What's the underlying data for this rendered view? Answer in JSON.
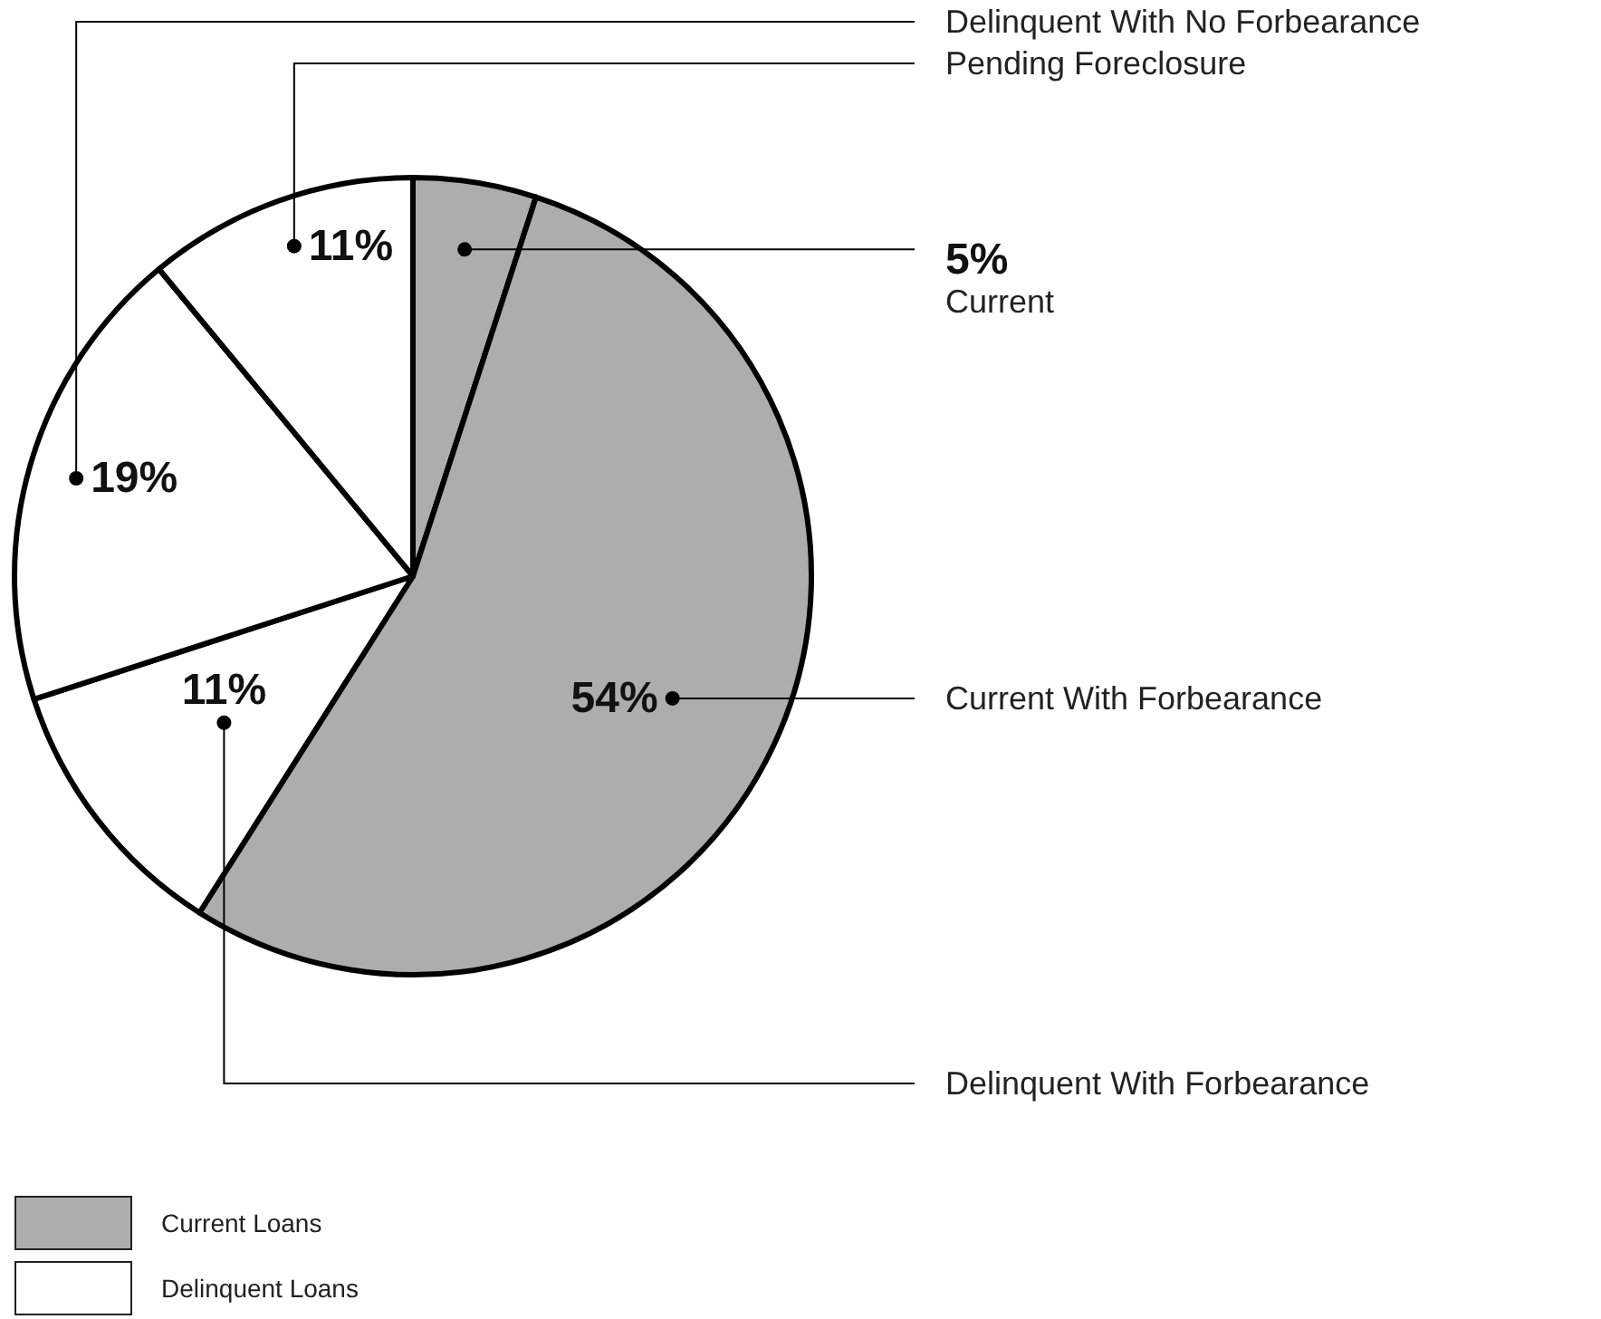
{
  "chart_data": {
    "type": "pie",
    "categories": [
      "Current",
      "Current With Forbearance",
      "Delinquent With Forbearance",
      "Delinquent With No Forbearance",
      "Pending Foreclosure"
    ],
    "values": [
      5,
      54,
      11,
      19,
      11
    ],
    "colors": [
      "#adadad",
      "#adadad",
      "#ffffff",
      "#ffffff",
      "#ffffff"
    ],
    "value_labels": [
      "5%",
      "54%",
      "11%",
      "19%",
      "11%"
    ],
    "annotations": [
      "Current Loans",
      "Delinquent Loans"
    ]
  }
}
